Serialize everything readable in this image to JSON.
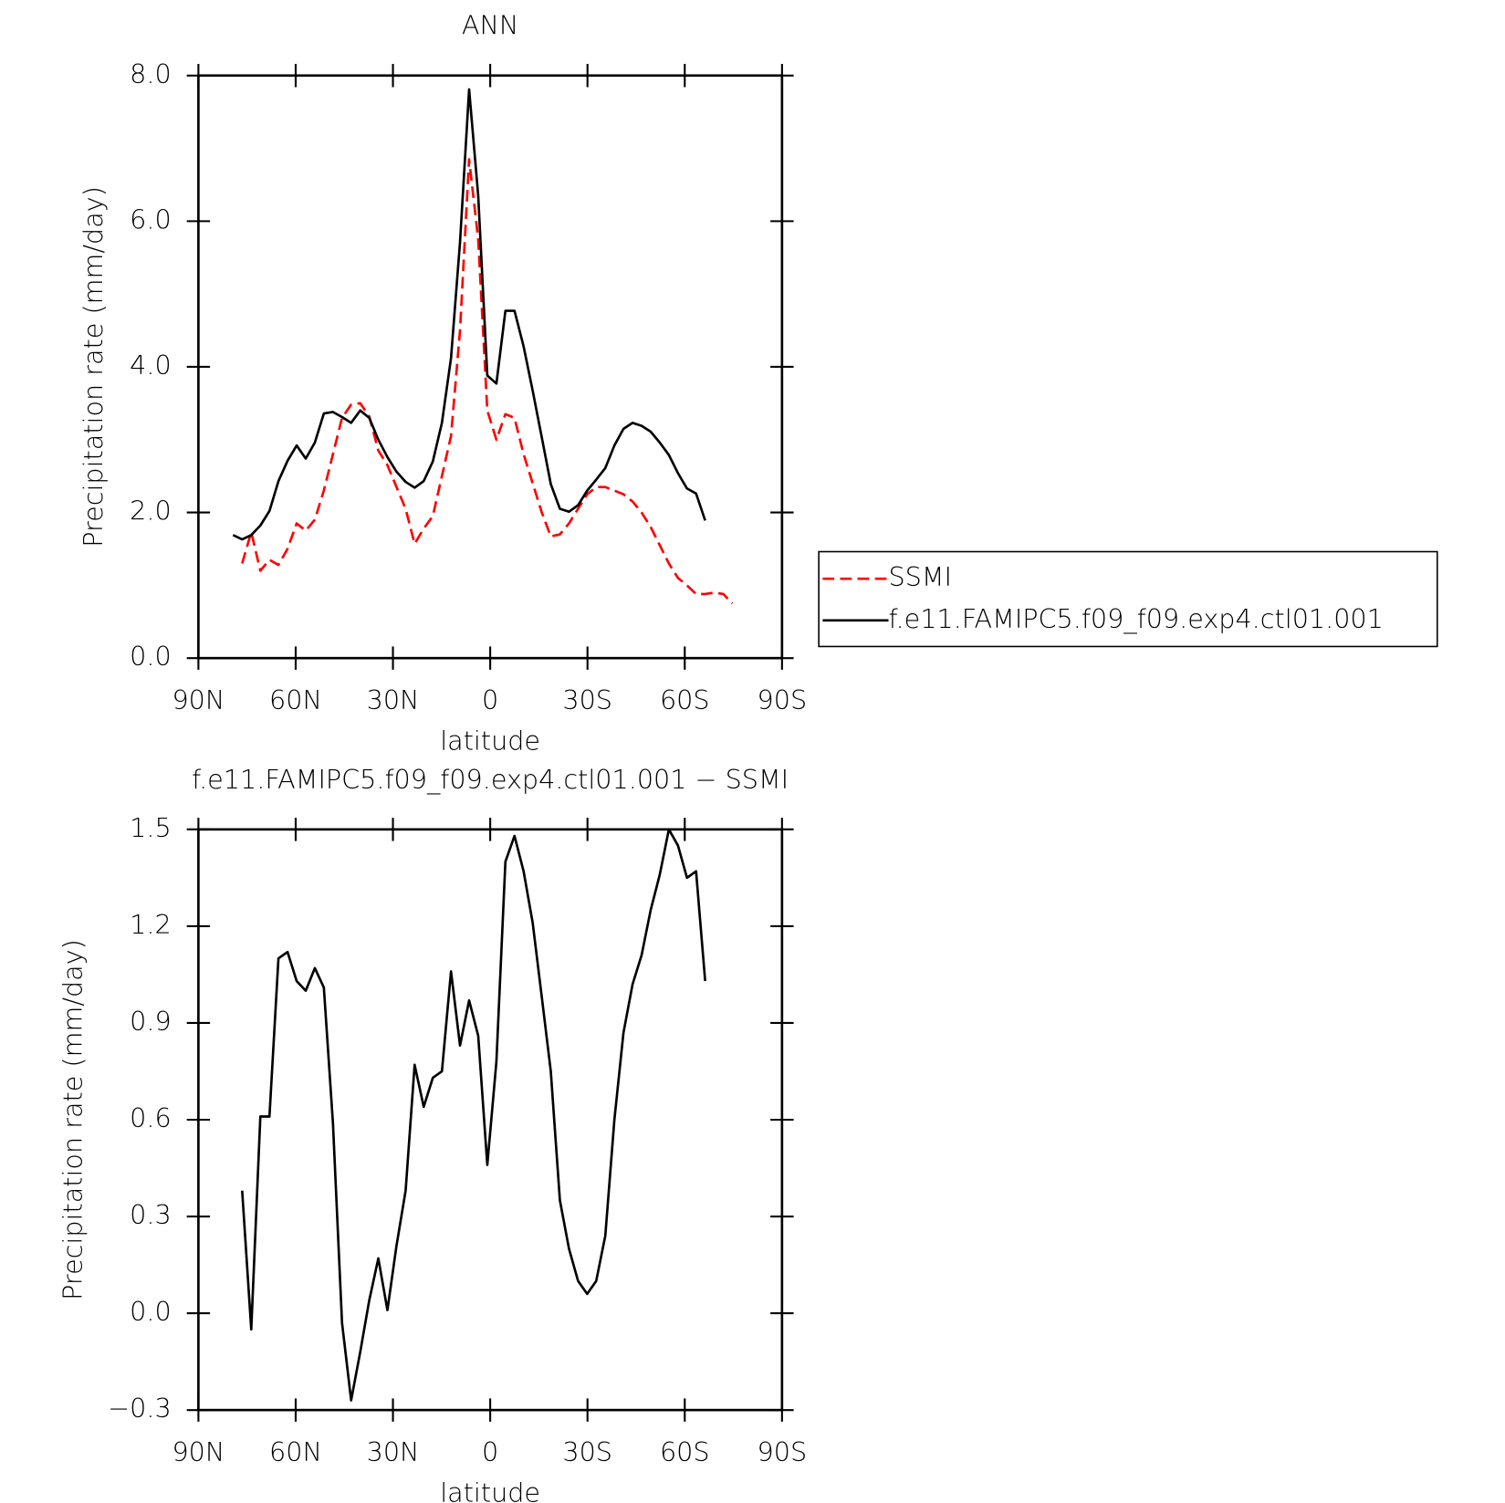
{
  "chart_data": [
    {
      "type": "line",
      "title": "ANN",
      "xlabel": "latitude",
      "ylabel": "Precipitation rate (mm/day)",
      "x": [
        79.3,
        76.5,
        73.7,
        70.9,
        68.1,
        65.3,
        62.5,
        59.7,
        56.9,
        54.1,
        51.3,
        48.5,
        45.7,
        42.9,
        40.1,
        37.3,
        34.5,
        31.7,
        28.9,
        26.1,
        23.3,
        20.5,
        17.7,
        14.9,
        12.1,
        9.3,
        6.5,
        3.7,
        0.9,
        -1.9,
        -4.7,
        -7.5,
        -10.3,
        -13.1,
        -15.9,
        -18.7,
        -21.5,
        -24.3,
        -27.1,
        -29.9,
        -32.7,
        -35.5,
        -38.3,
        -41.1,
        -43.9,
        -46.7,
        -49.5,
        -52.3,
        -55.1,
        -57.9,
        -60.7,
        -63.5,
        -66.3,
        -69.1,
        -71.9,
        -74.7
      ],
      "series": [
        {
          "name": "SSMI",
          "color": "#ff0000",
          "dash": true,
          "values": [
            null,
            1.3,
            1.73,
            1.2,
            1.35,
            1.28,
            1.5,
            1.85,
            1.75,
            1.9,
            2.3,
            2.8,
            3.3,
            3.48,
            3.5,
            3.32,
            2.85,
            2.65,
            2.35,
            2.05,
            1.57,
            1.78,
            1.95,
            2.5,
            3.05,
            4.5,
            6.85,
            5.75,
            3.4,
            3.0,
            3.35,
            3.3,
            2.8,
            2.4,
            2.0,
            1.67,
            1.7,
            1.85,
            2.05,
            2.25,
            2.35,
            2.35,
            2.3,
            2.25,
            2.15,
            2.0,
            1.8,
            1.55,
            1.3,
            1.1,
            1.0,
            0.88,
            0.88,
            0.9,
            0.88,
            0.75
          ]
        },
        {
          "name": "f.e11.FAMIPC5.f09_f09.exp4.ctl01.001",
          "color": "#000000",
          "dash": false,
          "values": [
            1.69,
            1.63,
            1.69,
            1.82,
            2.02,
            2.43,
            2.71,
            2.92,
            2.74,
            2.96,
            3.36,
            3.38,
            3.31,
            3.23,
            3.4,
            3.3,
            3.0,
            2.76,
            2.56,
            2.42,
            2.34,
            2.43,
            2.7,
            3.23,
            4.12,
            5.71,
            7.81,
            6.35,
            3.88,
            3.77,
            4.77,
            4.77,
            4.28,
            3.67,
            3.03,
            2.39,
            2.05,
            2.01,
            2.1,
            2.3,
            2.45,
            2.61,
            2.92,
            3.15,
            3.23,
            3.19,
            3.11,
            2.96,
            2.79,
            2.54,
            2.33,
            2.26,
            1.89,
            null,
            null,
            null
          ]
        }
      ],
      "xlim": [
        90,
        -90
      ],
      "xticks": [
        {
          "value": 90,
          "label": "90N"
        },
        {
          "value": 60,
          "label": "60N"
        },
        {
          "value": 30,
          "label": "30N"
        },
        0,
        {
          "value": -30,
          "label": "30S"
        },
        {
          "value": -60,
          "label": "60S"
        },
        {
          "value": -90,
          "label": "90S"
        }
      ],
      "ylim": [
        0,
        8
      ],
      "yticks": [
        {
          "value": 0,
          "label": "0.0"
        },
        {
          "value": 2,
          "label": "2.0"
        },
        {
          "value": 4,
          "label": "4.0"
        },
        {
          "value": 6,
          "label": "6.0"
        },
        {
          "value": 8,
          "label": "8.0"
        }
      ],
      "legend": "right"
    },
    {
      "type": "line",
      "title": "f.e11.FAMIPC5.f09_f09.exp4.ctl01.001 − SSMI",
      "xlabel": "latitude",
      "ylabel": "Precipitation rate (mm/day)",
      "x": [
        79.3,
        76.5,
        73.7,
        70.9,
        68.1,
        65.3,
        62.5,
        59.7,
        56.9,
        54.1,
        51.3,
        48.5,
        45.7,
        42.9,
        40.1,
        37.3,
        34.5,
        31.7,
        28.9,
        26.1,
        23.3,
        20.5,
        17.7,
        14.9,
        12.1,
        9.3,
        6.5,
        3.7,
        0.9,
        -1.9,
        -4.7,
        -7.5,
        -10.3,
        -13.1,
        -15.9,
        -18.7,
        -21.5,
        -24.3,
        -27.1,
        -29.9,
        -32.7,
        -35.5,
        -38.3,
        -41.1,
        -43.9,
        -46.7,
        -49.5,
        -52.3,
        -55.1,
        -57.9,
        -60.7,
        -63.5,
        -66.3,
        -69.1,
        -71.9,
        -74.7
      ],
      "color": "#000000",
      "values": [
        null,
        0.38,
        -0.05,
        0.61,
        0.61,
        1.1,
        1.12,
        1.03,
        1.0,
        1.07,
        1.01,
        0.59,
        -0.03,
        -0.27,
        -0.12,
        0.04,
        0.17,
        0.01,
        0.21,
        0.38,
        0.77,
        0.64,
        0.73,
        0.75,
        1.06,
        0.83,
        0.97,
        0.86,
        0.46,
        0.78,
        1.4,
        1.48,
        1.37,
        1.21,
        0.98,
        0.75,
        0.35,
        0.2,
        0.1,
        0.06,
        0.1,
        0.24,
        0.6,
        0.87,
        1.02,
        1.11,
        1.25,
        1.36,
        1.5,
        1.45,
        1.35,
        1.37,
        1.03,
        null,
        null,
        null
      ],
      "xlim": [
        90,
        -90
      ],
      "xticks": [
        {
          "value": 90,
          "label": "90N"
        },
        {
          "value": 60,
          "label": "60N"
        },
        {
          "value": 30,
          "label": "30N"
        },
        0,
        {
          "value": -30,
          "label": "30S"
        },
        {
          "value": -60,
          "label": "60S"
        },
        {
          "value": -90,
          "label": "90S"
        }
      ],
      "ylim": [
        -0.3,
        1.5
      ],
      "yticks": [
        {
          "value": -0.3,
          "label": "−0.3"
        },
        {
          "value": 0,
          "label": "0.0"
        },
        0.3,
        0.6,
        0.9,
        1.2,
        1.5
      ]
    }
  ]
}
